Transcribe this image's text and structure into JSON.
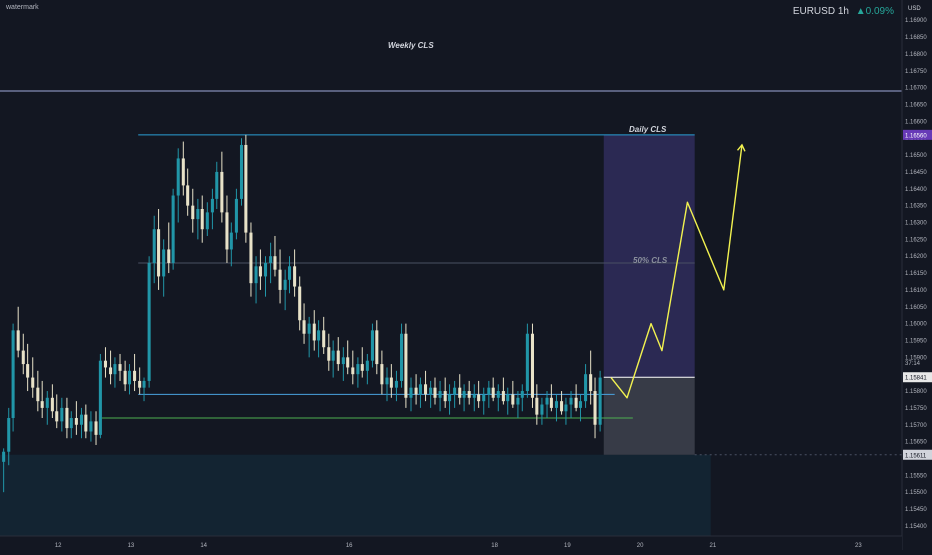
{
  "watermark": "watermark",
  "header": {
    "symbol": "EURUSD",
    "interval": "1h",
    "change": "▲0.09%"
  },
  "price_axis": {
    "currency": "USD",
    "countdown": "37:14",
    "current_price": "1.15841",
    "marker_price": "1.15611",
    "daily_price": "1.16560",
    "ticks": [
      "1.16900",
      "1.16850",
      "1.16800",
      "1.16750",
      "1.16700",
      "1.16650",
      "1.16600",
      "1.16550",
      "1.16500",
      "1.16450",
      "1.16400",
      "1.16350",
      "1.16300",
      "1.16250",
      "1.16200",
      "1.16150",
      "1.16100",
      "1.16050",
      "1.16000",
      "1.15950",
      "1.15900",
      "1.15800",
      "1.15750",
      "1.15700",
      "1.15650",
      "1.15550",
      "1.15500",
      "1.15450",
      "1.15400"
    ]
  },
  "time_axis": {
    "ticks": [
      {
        "label": "12",
        "day": 12
      },
      {
        "label": "13",
        "day": 13
      },
      {
        "label": "14",
        "day": 14
      },
      {
        "label": "16",
        "day": 16
      },
      {
        "label": "18",
        "day": 18
      },
      {
        "label": "19",
        "day": 19
      },
      {
        "label": "20",
        "day": 20
      },
      {
        "label": "21",
        "day": 21
      },
      {
        "label": "23",
        "day": 23
      }
    ]
  },
  "chart_data": {
    "type": "candlestick",
    "title": "EURUSD 1h",
    "ylim": [
      1.1537,
      1.1696
    ],
    "xlim": [
      11.2,
      23.6
    ],
    "grid": false,
    "colors": {
      "background": "#131722",
      "bull": "#2196a8",
      "bear": "#e8e2c8",
      "weekly_line": "#9fa8da",
      "daily_line": "#2a9fd6",
      "mid_line": "#4a5063",
      "support_line": "#4aa3e0",
      "green_line": "#4caf50",
      "projection": "#f2f250",
      "target_zone": "#5a4bb0",
      "stop_zone": "#7a7f8c",
      "lower_zone": "#14303f",
      "current_price_line": "#ffffff"
    },
    "annotations": {
      "weekly": {
        "label": "Weekly CLS",
        "price": 1.1669
      },
      "daily": {
        "label": "Daily CLS",
        "price": 1.1656
      },
      "mid": {
        "label": "50% CLS",
        "price": 1.1618
      },
      "support": {
        "price": 1.1579
      },
      "green": {
        "price": 1.1572
      }
    },
    "position": {
      "x_start": 19.5,
      "x_end": 20.75,
      "entry": 1.15841,
      "target": 1.1656,
      "stop": 1.15611
    },
    "projection_path": [
      {
        "x": 19.6,
        "y": 1.1584
      },
      {
        "x": 19.82,
        "y": 1.1578
      },
      {
        "x": 20.15,
        "y": 1.16
      },
      {
        "x": 20.3,
        "y": 1.1592
      },
      {
        "x": 20.65,
        "y": 1.1636
      },
      {
        "x": 21.15,
        "y": 1.161
      },
      {
        "x": 21.4,
        "y": 1.1653
      }
    ],
    "candles": [
      {
        "t": 11.25,
        "o": 1.1559,
        "h": 1.1563,
        "l": 1.155,
        "c": 1.1562
      },
      {
        "t": 11.32,
        "o": 1.1562,
        "h": 1.1575,
        "l": 1.1558,
        "c": 1.1572
      },
      {
        "t": 11.38,
        "o": 1.1572,
        "h": 1.16,
        "l": 1.1568,
        "c": 1.1598
      },
      {
        "t": 11.45,
        "o": 1.1598,
        "h": 1.1605,
        "l": 1.159,
        "c": 1.1592
      },
      {
        "t": 11.52,
        "o": 1.1592,
        "h": 1.1597,
        "l": 1.1585,
        "c": 1.1588
      },
      {
        "t": 11.58,
        "o": 1.1588,
        "h": 1.1594,
        "l": 1.158,
        "c": 1.1584
      },
      {
        "t": 11.65,
        "o": 1.1584,
        "h": 1.159,
        "l": 1.1578,
        "c": 1.1581
      },
      {
        "t": 11.72,
        "o": 1.1581,
        "h": 1.1586,
        "l": 1.1574,
        "c": 1.1577
      },
      {
        "t": 11.78,
        "o": 1.1577,
        "h": 1.1583,
        "l": 1.1572,
        "c": 1.1575
      },
      {
        "t": 11.85,
        "o": 1.1575,
        "h": 1.158,
        "l": 1.157,
        "c": 1.1578
      },
      {
        "t": 11.92,
        "o": 1.1578,
        "h": 1.1582,
        "l": 1.1572,
        "c": 1.1574
      },
      {
        "t": 11.98,
        "o": 1.1574,
        "h": 1.1579,
        "l": 1.1569,
        "c": 1.1571
      },
      {
        "t": 12.05,
        "o": 1.1571,
        "h": 1.1578,
        "l": 1.1568,
        "c": 1.1575
      },
      {
        "t": 12.12,
        "o": 1.1575,
        "h": 1.1578,
        "l": 1.1566,
        "c": 1.1569
      },
      {
        "t": 12.18,
        "o": 1.1569,
        "h": 1.1574,
        "l": 1.1566,
        "c": 1.1572
      },
      {
        "t": 12.25,
        "o": 1.1572,
        "h": 1.1577,
        "l": 1.1567,
        "c": 1.157
      },
      {
        "t": 12.32,
        "o": 1.157,
        "h": 1.1575,
        "l": 1.1566,
        "c": 1.1573
      },
      {
        "t": 12.38,
        "o": 1.1573,
        "h": 1.1576,
        "l": 1.1566,
        "c": 1.1568
      },
      {
        "t": 12.45,
        "o": 1.1568,
        "h": 1.1574,
        "l": 1.1565,
        "c": 1.1571
      },
      {
        "t": 12.52,
        "o": 1.1571,
        "h": 1.1574,
        "l": 1.1564,
        "c": 1.1567
      },
      {
        "t": 12.58,
        "o": 1.1567,
        "h": 1.1591,
        "l": 1.1566,
        "c": 1.1589
      },
      {
        "t": 12.65,
        "o": 1.1589,
        "h": 1.1593,
        "l": 1.1584,
        "c": 1.1587
      },
      {
        "t": 12.72,
        "o": 1.1587,
        "h": 1.1592,
        "l": 1.1582,
        "c": 1.1585
      },
      {
        "t": 12.78,
        "o": 1.1585,
        "h": 1.159,
        "l": 1.1581,
        "c": 1.1588
      },
      {
        "t": 12.85,
        "o": 1.1588,
        "h": 1.1591,
        "l": 1.1583,
        "c": 1.1586
      },
      {
        "t": 12.92,
        "o": 1.1586,
        "h": 1.1589,
        "l": 1.158,
        "c": 1.1582
      },
      {
        "t": 12.98,
        "o": 1.1582,
        "h": 1.1588,
        "l": 1.1579,
        "c": 1.1586
      },
      {
        "t": 13.05,
        "o": 1.1586,
        "h": 1.1591,
        "l": 1.158,
        "c": 1.1583
      },
      {
        "t": 13.12,
        "o": 1.1583,
        "h": 1.1587,
        "l": 1.1579,
        "c": 1.1581
      },
      {
        "t": 13.18,
        "o": 1.1581,
        "h": 1.1584,
        "l": 1.1577,
        "c": 1.1583
      },
      {
        "t": 13.25,
        "o": 1.1583,
        "h": 1.162,
        "l": 1.1581,
        "c": 1.1618
      },
      {
        "t": 13.32,
        "o": 1.1618,
        "h": 1.1632,
        "l": 1.1612,
        "c": 1.1628
      },
      {
        "t": 13.38,
        "o": 1.1628,
        "h": 1.1634,
        "l": 1.161,
        "c": 1.1614
      },
      {
        "t": 13.45,
        "o": 1.1614,
        "h": 1.1625,
        "l": 1.1608,
        "c": 1.1622
      },
      {
        "t": 13.52,
        "o": 1.1622,
        "h": 1.163,
        "l": 1.1615,
        "c": 1.1618
      },
      {
        "t": 13.58,
        "o": 1.1618,
        "h": 1.164,
        "l": 1.1616,
        "c": 1.1638
      },
      {
        "t": 13.65,
        "o": 1.1638,
        "h": 1.1652,
        "l": 1.163,
        "c": 1.1649
      },
      {
        "t": 13.72,
        "o": 1.1649,
        "h": 1.1654,
        "l": 1.1638,
        "c": 1.1641
      },
      {
        "t": 13.78,
        "o": 1.1641,
        "h": 1.1646,
        "l": 1.1632,
        "c": 1.1635
      },
      {
        "t": 13.85,
        "o": 1.1635,
        "h": 1.164,
        "l": 1.1627,
        "c": 1.1631
      },
      {
        "t": 13.92,
        "o": 1.1631,
        "h": 1.1637,
        "l": 1.1625,
        "c": 1.1634
      },
      {
        "t": 13.98,
        "o": 1.1634,
        "h": 1.1638,
        "l": 1.1624,
        "c": 1.1628
      },
      {
        "t": 14.05,
        "o": 1.1628,
        "h": 1.1636,
        "l": 1.1626,
        "c": 1.1633
      },
      {
        "t": 14.12,
        "o": 1.1633,
        "h": 1.164,
        "l": 1.1628,
        "c": 1.1637
      },
      {
        "t": 14.18,
        "o": 1.1637,
        "h": 1.1648,
        "l": 1.1634,
        "c": 1.1645
      },
      {
        "t": 14.25,
        "o": 1.1645,
        "h": 1.1651,
        "l": 1.163,
        "c": 1.1633
      },
      {
        "t": 14.32,
        "o": 1.1633,
        "h": 1.1638,
        "l": 1.1618,
        "c": 1.1622
      },
      {
        "t": 14.38,
        "o": 1.1622,
        "h": 1.163,
        "l": 1.1617,
        "c": 1.1627
      },
      {
        "t": 14.45,
        "o": 1.1627,
        "h": 1.164,
        "l": 1.1625,
        "c": 1.1637
      },
      {
        "t": 14.52,
        "o": 1.1637,
        "h": 1.1655,
        "l": 1.1635,
        "c": 1.1653
      },
      {
        "t": 14.58,
        "o": 1.1653,
        "h": 1.1656,
        "l": 1.1624,
        "c": 1.1627
      },
      {
        "t": 14.65,
        "o": 1.1627,
        "h": 1.163,
        "l": 1.1608,
        "c": 1.1612
      },
      {
        "t": 14.72,
        "o": 1.1612,
        "h": 1.162,
        "l": 1.1606,
        "c": 1.1617
      },
      {
        "t": 14.78,
        "o": 1.1617,
        "h": 1.1622,
        "l": 1.161,
        "c": 1.1614
      },
      {
        "t": 14.85,
        "o": 1.1614,
        "h": 1.162,
        "l": 1.1608,
        "c": 1.1618
      },
      {
        "t": 14.92,
        "o": 1.1618,
        "h": 1.1624,
        "l": 1.1612,
        "c": 1.162
      },
      {
        "t": 14.98,
        "o": 1.162,
        "h": 1.1626,
        "l": 1.1614,
        "c": 1.1616
      },
      {
        "t": 15.05,
        "o": 1.1616,
        "h": 1.1622,
        "l": 1.1606,
        "c": 1.161
      },
      {
        "t": 15.12,
        "o": 1.161,
        "h": 1.1616,
        "l": 1.1604,
        "c": 1.1613
      },
      {
        "t": 15.18,
        "o": 1.1613,
        "h": 1.162,
        "l": 1.1609,
        "c": 1.1617
      },
      {
        "t": 15.25,
        "o": 1.1617,
        "h": 1.1622,
        "l": 1.1608,
        "c": 1.1611
      },
      {
        "t": 15.32,
        "o": 1.1611,
        "h": 1.1614,
        "l": 1.1598,
        "c": 1.1601
      },
      {
        "t": 15.38,
        "o": 1.1601,
        "h": 1.1606,
        "l": 1.1594,
        "c": 1.1597
      },
      {
        "t": 15.45,
        "o": 1.1597,
        "h": 1.1602,
        "l": 1.159,
        "c": 1.16
      },
      {
        "t": 15.52,
        "o": 1.16,
        "h": 1.1604,
        "l": 1.1592,
        "c": 1.1595
      },
      {
        "t": 15.58,
        "o": 1.1595,
        "h": 1.1601,
        "l": 1.159,
        "c": 1.1598
      },
      {
        "t": 15.65,
        "o": 1.1598,
        "h": 1.1602,
        "l": 1.1591,
        "c": 1.1593
      },
      {
        "t": 15.72,
        "o": 1.1593,
        "h": 1.1597,
        "l": 1.1586,
        "c": 1.1589
      },
      {
        "t": 15.78,
        "o": 1.1589,
        "h": 1.1595,
        "l": 1.1584,
        "c": 1.1592
      },
      {
        "t": 15.85,
        "o": 1.1592,
        "h": 1.1596,
        "l": 1.1586,
        "c": 1.1588
      },
      {
        "t": 15.92,
        "o": 1.1588,
        "h": 1.1593,
        "l": 1.1583,
        "c": 1.159
      },
      {
        "t": 15.98,
        "o": 1.159,
        "h": 1.1595,
        "l": 1.1585,
        "c": 1.1587
      },
      {
        "t": 16.05,
        "o": 1.1587,
        "h": 1.1592,
        "l": 1.1582,
        "c": 1.1585
      },
      {
        "t": 16.12,
        "o": 1.1585,
        "h": 1.159,
        "l": 1.1581,
        "c": 1.1588
      },
      {
        "t": 16.18,
        "o": 1.1588,
        "h": 1.1593,
        "l": 1.1584,
        "c": 1.1586
      },
      {
        "t": 16.25,
        "o": 1.1586,
        "h": 1.1591,
        "l": 1.1582,
        "c": 1.1589
      },
      {
        "t": 16.32,
        "o": 1.1589,
        "h": 1.16,
        "l": 1.1587,
        "c": 1.1598
      },
      {
        "t": 16.38,
        "o": 1.1598,
        "h": 1.1601,
        "l": 1.1585,
        "c": 1.1588
      },
      {
        "t": 16.45,
        "o": 1.1588,
        "h": 1.1592,
        "l": 1.1579,
        "c": 1.1582
      },
      {
        "t": 16.52,
        "o": 1.1582,
        "h": 1.1587,
        "l": 1.1577,
        "c": 1.1584
      },
      {
        "t": 16.58,
        "o": 1.1584,
        "h": 1.1588,
        "l": 1.1578,
        "c": 1.1581
      },
      {
        "t": 16.65,
        "o": 1.1581,
        "h": 1.1586,
        "l": 1.1577,
        "c": 1.1583
      },
      {
        "t": 16.72,
        "o": 1.1583,
        "h": 1.16,
        "l": 1.1581,
        "c": 1.1597
      },
      {
        "t": 16.78,
        "o": 1.1597,
        "h": 1.16,
        "l": 1.1575,
        "c": 1.1578
      },
      {
        "t": 16.85,
        "o": 1.1578,
        "h": 1.1584,
        "l": 1.1574,
        "c": 1.1581
      },
      {
        "t": 16.92,
        "o": 1.1581,
        "h": 1.1585,
        "l": 1.1576,
        "c": 1.1579
      },
      {
        "t": 16.98,
        "o": 1.1579,
        "h": 1.1584,
        "l": 1.1575,
        "c": 1.1582
      },
      {
        "t": 17.05,
        "o": 1.1582,
        "h": 1.1586,
        "l": 1.1577,
        "c": 1.1579
      },
      {
        "t": 17.12,
        "o": 1.1579,
        "h": 1.1583,
        "l": 1.1575,
        "c": 1.1581
      },
      {
        "t": 17.18,
        "o": 1.1581,
        "h": 1.1584,
        "l": 1.1576,
        "c": 1.1578
      },
      {
        "t": 17.25,
        "o": 1.1578,
        "h": 1.1583,
        "l": 1.1574,
        "c": 1.158
      },
      {
        "t": 17.32,
        "o": 1.158,
        "h": 1.1584,
        "l": 1.1575,
        "c": 1.1577
      },
      {
        "t": 17.38,
        "o": 1.1577,
        "h": 1.1582,
        "l": 1.1573,
        "c": 1.1579
      },
      {
        "t": 17.45,
        "o": 1.1579,
        "h": 1.1583,
        "l": 1.1575,
        "c": 1.1581
      },
      {
        "t": 17.52,
        "o": 1.1581,
        "h": 1.1585,
        "l": 1.1576,
        "c": 1.1578
      },
      {
        "t": 17.58,
        "o": 1.1578,
        "h": 1.1582,
        "l": 1.1574,
        "c": 1.158
      },
      {
        "t": 17.65,
        "o": 1.158,
        "h": 1.1583,
        "l": 1.1576,
        "c": 1.1578
      },
      {
        "t": 17.72,
        "o": 1.1578,
        "h": 1.1582,
        "l": 1.1574,
        "c": 1.1579
      },
      {
        "t": 17.78,
        "o": 1.1579,
        "h": 1.1583,
        "l": 1.1575,
        "c": 1.1577
      },
      {
        "t": 17.85,
        "o": 1.1577,
        "h": 1.1581,
        "l": 1.1573,
        "c": 1.1579
      },
      {
        "t": 17.92,
        "o": 1.1579,
        "h": 1.1583,
        "l": 1.1575,
        "c": 1.1581
      },
      {
        "t": 17.98,
        "o": 1.1581,
        "h": 1.1584,
        "l": 1.1577,
        "c": 1.1578
      },
      {
        "t": 18.05,
        "o": 1.1578,
        "h": 1.1582,
        "l": 1.1574,
        "c": 1.158
      },
      {
        "t": 18.12,
        "o": 1.158,
        "h": 1.1584,
        "l": 1.1576,
        "c": 1.1577
      },
      {
        "t": 18.18,
        "o": 1.1577,
        "h": 1.1581,
        "l": 1.1573,
        "c": 1.1579
      },
      {
        "t": 18.25,
        "o": 1.1579,
        "h": 1.1583,
        "l": 1.1575,
        "c": 1.1576
      },
      {
        "t": 18.32,
        "o": 1.1576,
        "h": 1.158,
        "l": 1.1572,
        "c": 1.1578
      },
      {
        "t": 18.38,
        "o": 1.1578,
        "h": 1.1582,
        "l": 1.1574,
        "c": 1.158
      },
      {
        "t": 18.45,
        "o": 1.158,
        "h": 1.16,
        "l": 1.1578,
        "c": 1.1597
      },
      {
        "t": 18.52,
        "o": 1.1597,
        "h": 1.16,
        "l": 1.1575,
        "c": 1.1578
      },
      {
        "t": 18.58,
        "o": 1.1578,
        "h": 1.1582,
        "l": 1.157,
        "c": 1.1573
      },
      {
        "t": 18.65,
        "o": 1.1573,
        "h": 1.1578,
        "l": 1.157,
        "c": 1.1576
      },
      {
        "t": 18.72,
        "o": 1.1576,
        "h": 1.158,
        "l": 1.1572,
        "c": 1.1578
      },
      {
        "t": 18.78,
        "o": 1.1578,
        "h": 1.1582,
        "l": 1.1574,
        "c": 1.1575
      },
      {
        "t": 18.85,
        "o": 1.1575,
        "h": 1.1579,
        "l": 1.1571,
        "c": 1.1577
      },
      {
        "t": 18.92,
        "o": 1.1577,
        "h": 1.158,
        "l": 1.1573,
        "c": 1.1574
      },
      {
        "t": 18.98,
        "o": 1.1574,
        "h": 1.1578,
        "l": 1.157,
        "c": 1.1576
      },
      {
        "t": 19.05,
        "o": 1.1576,
        "h": 1.158,
        "l": 1.1572,
        "c": 1.1578
      },
      {
        "t": 19.12,
        "o": 1.1578,
        "h": 1.1582,
        "l": 1.1574,
        "c": 1.1575
      },
      {
        "t": 19.18,
        "o": 1.1575,
        "h": 1.1579,
        "l": 1.1571,
        "c": 1.1577
      },
      {
        "t": 19.25,
        "o": 1.1577,
        "h": 1.1588,
        "l": 1.1575,
        "c": 1.1585
      },
      {
        "t": 19.32,
        "o": 1.1585,
        "h": 1.1592,
        "l": 1.1576,
        "c": 1.158
      },
      {
        "t": 19.38,
        "o": 1.158,
        "h": 1.1584,
        "l": 1.1566,
        "c": 1.157
      },
      {
        "t": 19.45,
        "o": 1.157,
        "h": 1.1586,
        "l": 1.1568,
        "c": 1.1584
      }
    ]
  }
}
